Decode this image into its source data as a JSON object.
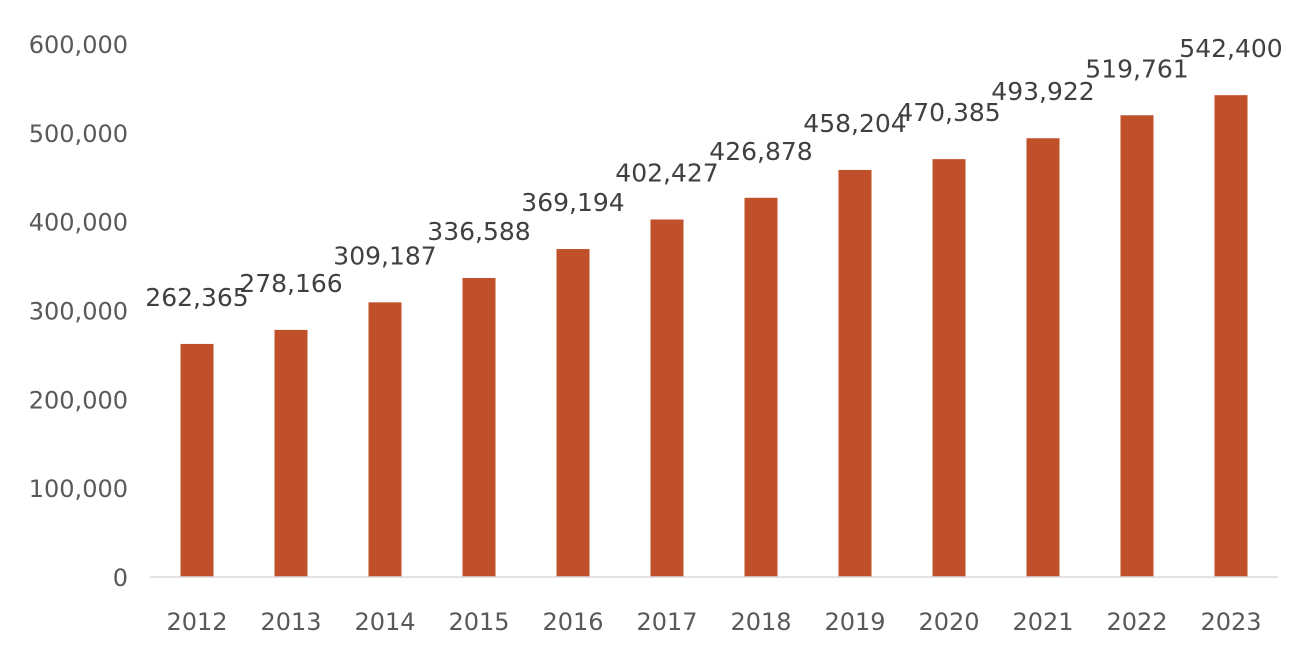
{
  "chart_data": {
    "type": "bar",
    "title": "",
    "xlabel": "",
    "ylabel": "",
    "categories": [
      "2012",
      "2013",
      "2014",
      "2015",
      "2016",
      "2017",
      "2018",
      "2019",
      "2020",
      "2021",
      "2022",
      "2023"
    ],
    "values": [
      262365,
      278166,
      309187,
      336588,
      369194,
      402427,
      426878,
      458204,
      470385,
      493922,
      519761,
      542400
    ],
    "data_labels": [
      "262,365",
      "278,166",
      "309,187",
      "336,588",
      "369,194",
      "402,427",
      "426,878",
      "458,204",
      "470,385",
      "493,922",
      "519,761",
      "542,400"
    ],
    "ylim": [
      0,
      600000
    ],
    "yticks": [
      0,
      100000,
      200000,
      300000,
      400000,
      500000,
      600000
    ],
    "ytick_labels": [
      "0",
      "100,000",
      "200,000",
      "300,000",
      "400,000",
      "500,000",
      "600,000"
    ],
    "grid": false,
    "legend": "none",
    "bar_color": "#C0502A",
    "axis_color": "#D9D9D9"
  }
}
